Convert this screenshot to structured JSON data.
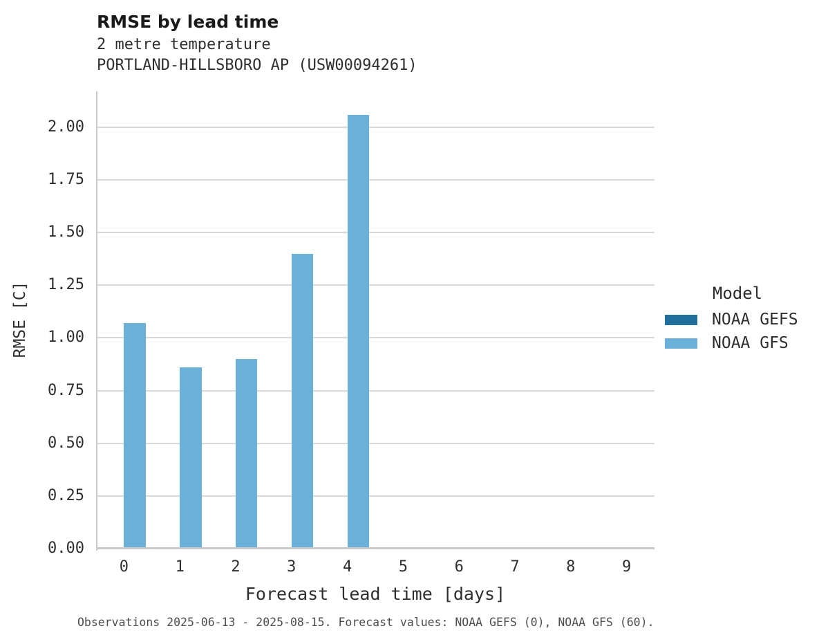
{
  "chart_data": {
    "type": "bar",
    "title": "RMSE by lead time",
    "subtitle_lines": [
      "2 metre temperature",
      "PORTLAND-HILLSBORO AP (USW00094261)"
    ],
    "xlabel": "Forecast lead time [days]",
    "ylabel": "RMSE [C]",
    "footnote": "Observations 2025-06-13 - 2025-08-15. Forecast values: NOAA GEFS (0), NOAA GFS (60).",
    "categories": [
      "0",
      "1",
      "2",
      "3",
      "4",
      "5",
      "6",
      "7",
      "8",
      "9"
    ],
    "series": [
      {
        "name": "NOAA GEFS",
        "color": "#1f6e9c",
        "values": [
          null,
          null,
          null,
          null,
          null,
          null,
          null,
          null,
          null,
          null
        ]
      },
      {
        "name": "NOAA GFS",
        "color": "#6bb0d8",
        "values": [
          1.07,
          0.86,
          0.9,
          1.4,
          2.06,
          null,
          null,
          null,
          null,
          null
        ]
      }
    ],
    "ylim": [
      0,
      2.17
    ],
    "yticks": [
      {
        "value": 0.0,
        "label": "0.00"
      },
      {
        "value": 0.25,
        "label": "0.25"
      },
      {
        "value": 0.5,
        "label": "0.50"
      },
      {
        "value": 0.75,
        "label": "0.75"
      },
      {
        "value": 1.0,
        "label": "1.00"
      },
      {
        "value": 1.25,
        "label": "1.25"
      },
      {
        "value": 1.5,
        "label": "1.50"
      },
      {
        "value": 1.75,
        "label": "1.75"
      },
      {
        "value": 2.0,
        "label": "2.00"
      }
    ],
    "grid": "horizontal",
    "legend": {
      "title": "Model",
      "position": "right"
    }
  },
  "colors": {
    "grid": "#d9d9d9",
    "spine": "#c9c9c9",
    "background": "#ffffff"
  }
}
